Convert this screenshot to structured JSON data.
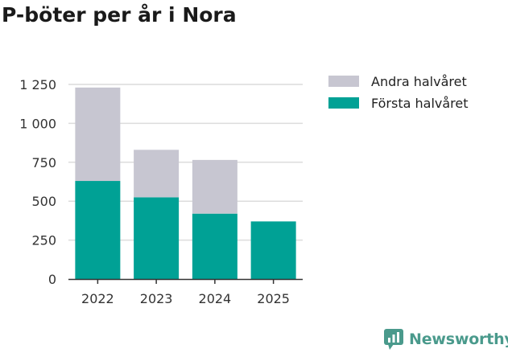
{
  "chart_data": {
    "type": "bar",
    "stacked": true,
    "title": "P-böter per år i Nora",
    "categories": [
      "2022",
      "2023",
      "2024",
      "2025"
    ],
    "series": [
      {
        "name": "Första halvåret",
        "color": "#00a195",
        "values": [
          630,
          525,
          420,
          370
        ]
      },
      {
        "name": "Andra halvåret",
        "color": "#c7c6d1",
        "values": [
          600,
          305,
          345,
          0
        ]
      }
    ],
    "legend": [
      "Andra halvåret",
      "Första halvåret"
    ],
    "yticks": [
      0,
      250,
      500,
      750,
      1000,
      1250
    ],
    "ytick_labels": [
      "0",
      "250",
      "500",
      "750",
      "1 000",
      "1 250"
    ],
    "ylim": [
      0,
      1250
    ],
    "xlabel": "",
    "ylabel": "",
    "grid": true,
    "legend_position": "right"
  },
  "brand": {
    "name": "Newsworthy",
    "icon": "newsworthy-logo-icon",
    "color": "#4a9a8c"
  }
}
